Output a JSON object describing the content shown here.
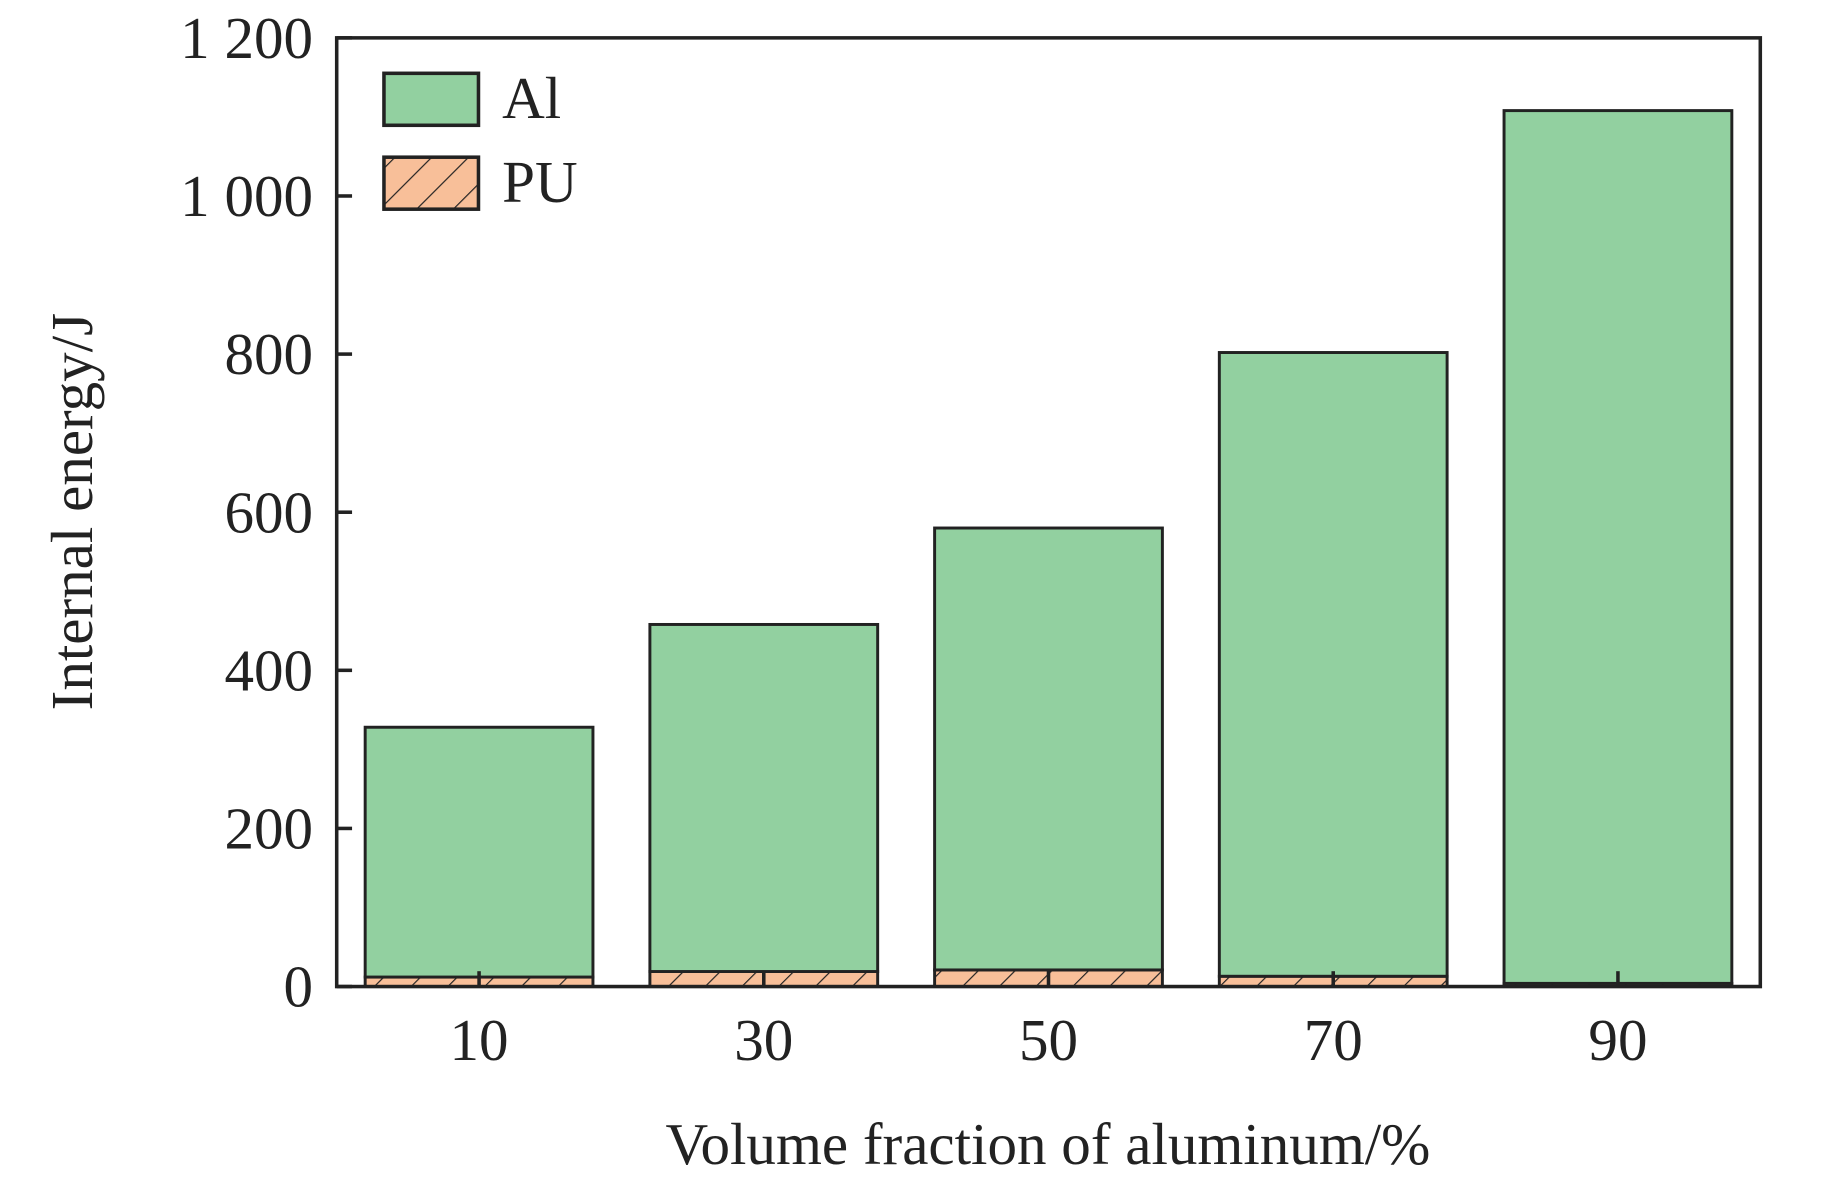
{
  "chart_data": {
    "type": "bar",
    "stacked": true,
    "title": "",
    "xlabel": "Volume fraction of aluminum/%",
    "ylabel": "Internal energy/J",
    "categories": [
      "10",
      "30",
      "50",
      "70",
      "90"
    ],
    "ylim": [
      0,
      1200
    ],
    "yticks": [
      0,
      200,
      400,
      600,
      800,
      1000,
      1200
    ],
    "ytick_labels": [
      "0",
      "200",
      "400",
      "600",
      "800",
      "1 000",
      "1 200"
    ],
    "grid": false,
    "legend_position": "top-left",
    "series": [
      {
        "name": "PU",
        "values": [
          12,
          19,
          21,
          13,
          4
        ],
        "color": "#f8bf99",
        "pattern": "hatch"
      },
      {
        "name": "Al",
        "values": [
          316,
          439,
          559,
          789,
          1104
        ],
        "color": "#92d0a0",
        "pattern": "solid"
      }
    ],
    "legend": [
      {
        "label": "Al",
        "color": "#92d0a0",
        "pattern": "solid"
      },
      {
        "label": "PU",
        "color": "#f8bf99",
        "pattern": "hatch"
      }
    ]
  }
}
